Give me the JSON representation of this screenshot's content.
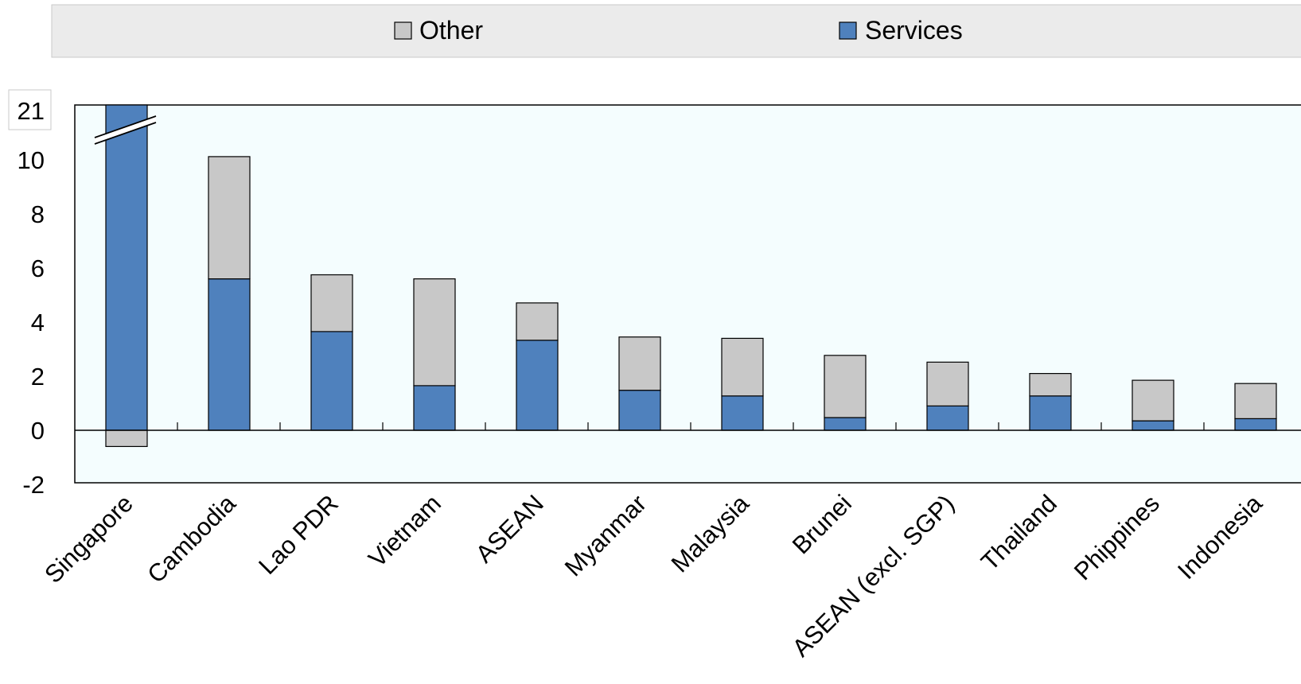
{
  "chart_data": {
    "type": "bar",
    "stacked": true,
    "title": "",
    "xlabel": "",
    "ylabel": "",
    "categories": [
      "Singapore",
      "Cambodia",
      "Lao PDR",
      "Vietnam",
      "ASEAN",
      "Myanmar",
      "Malaysia",
      "Brunei",
      "ASEAN (excl. SGP)",
      "Thailand",
      "Phippines",
      "Indonesia"
    ],
    "series": [
      {
        "name": "Services",
        "color": "#4f81bd",
        "values": [
          21.6,
          5.6,
          3.65,
          1.65,
          3.33,
          1.48,
          1.27,
          0.47,
          0.9,
          1.27,
          0.35,
          0.43
        ]
      },
      {
        "name": "Other",
        "color": "#c8c8c8",
        "values": [
          -0.6,
          4.52,
          2.1,
          3.95,
          1.38,
          1.97,
          2.13,
          2.3,
          1.62,
          0.83,
          1.5,
          1.3
        ]
      }
    ],
    "legend_order": [
      "Other",
      "Services"
    ],
    "ylim": [
      -2,
      21
    ],
    "y_ticks": [
      -2,
      0,
      2,
      4,
      6,
      8,
      10
    ],
    "y_break": {
      "label": "21",
      "shown_above": 10
    },
    "legend_position": "top",
    "grid": false,
    "plot_background": "#f4fdfe"
  }
}
